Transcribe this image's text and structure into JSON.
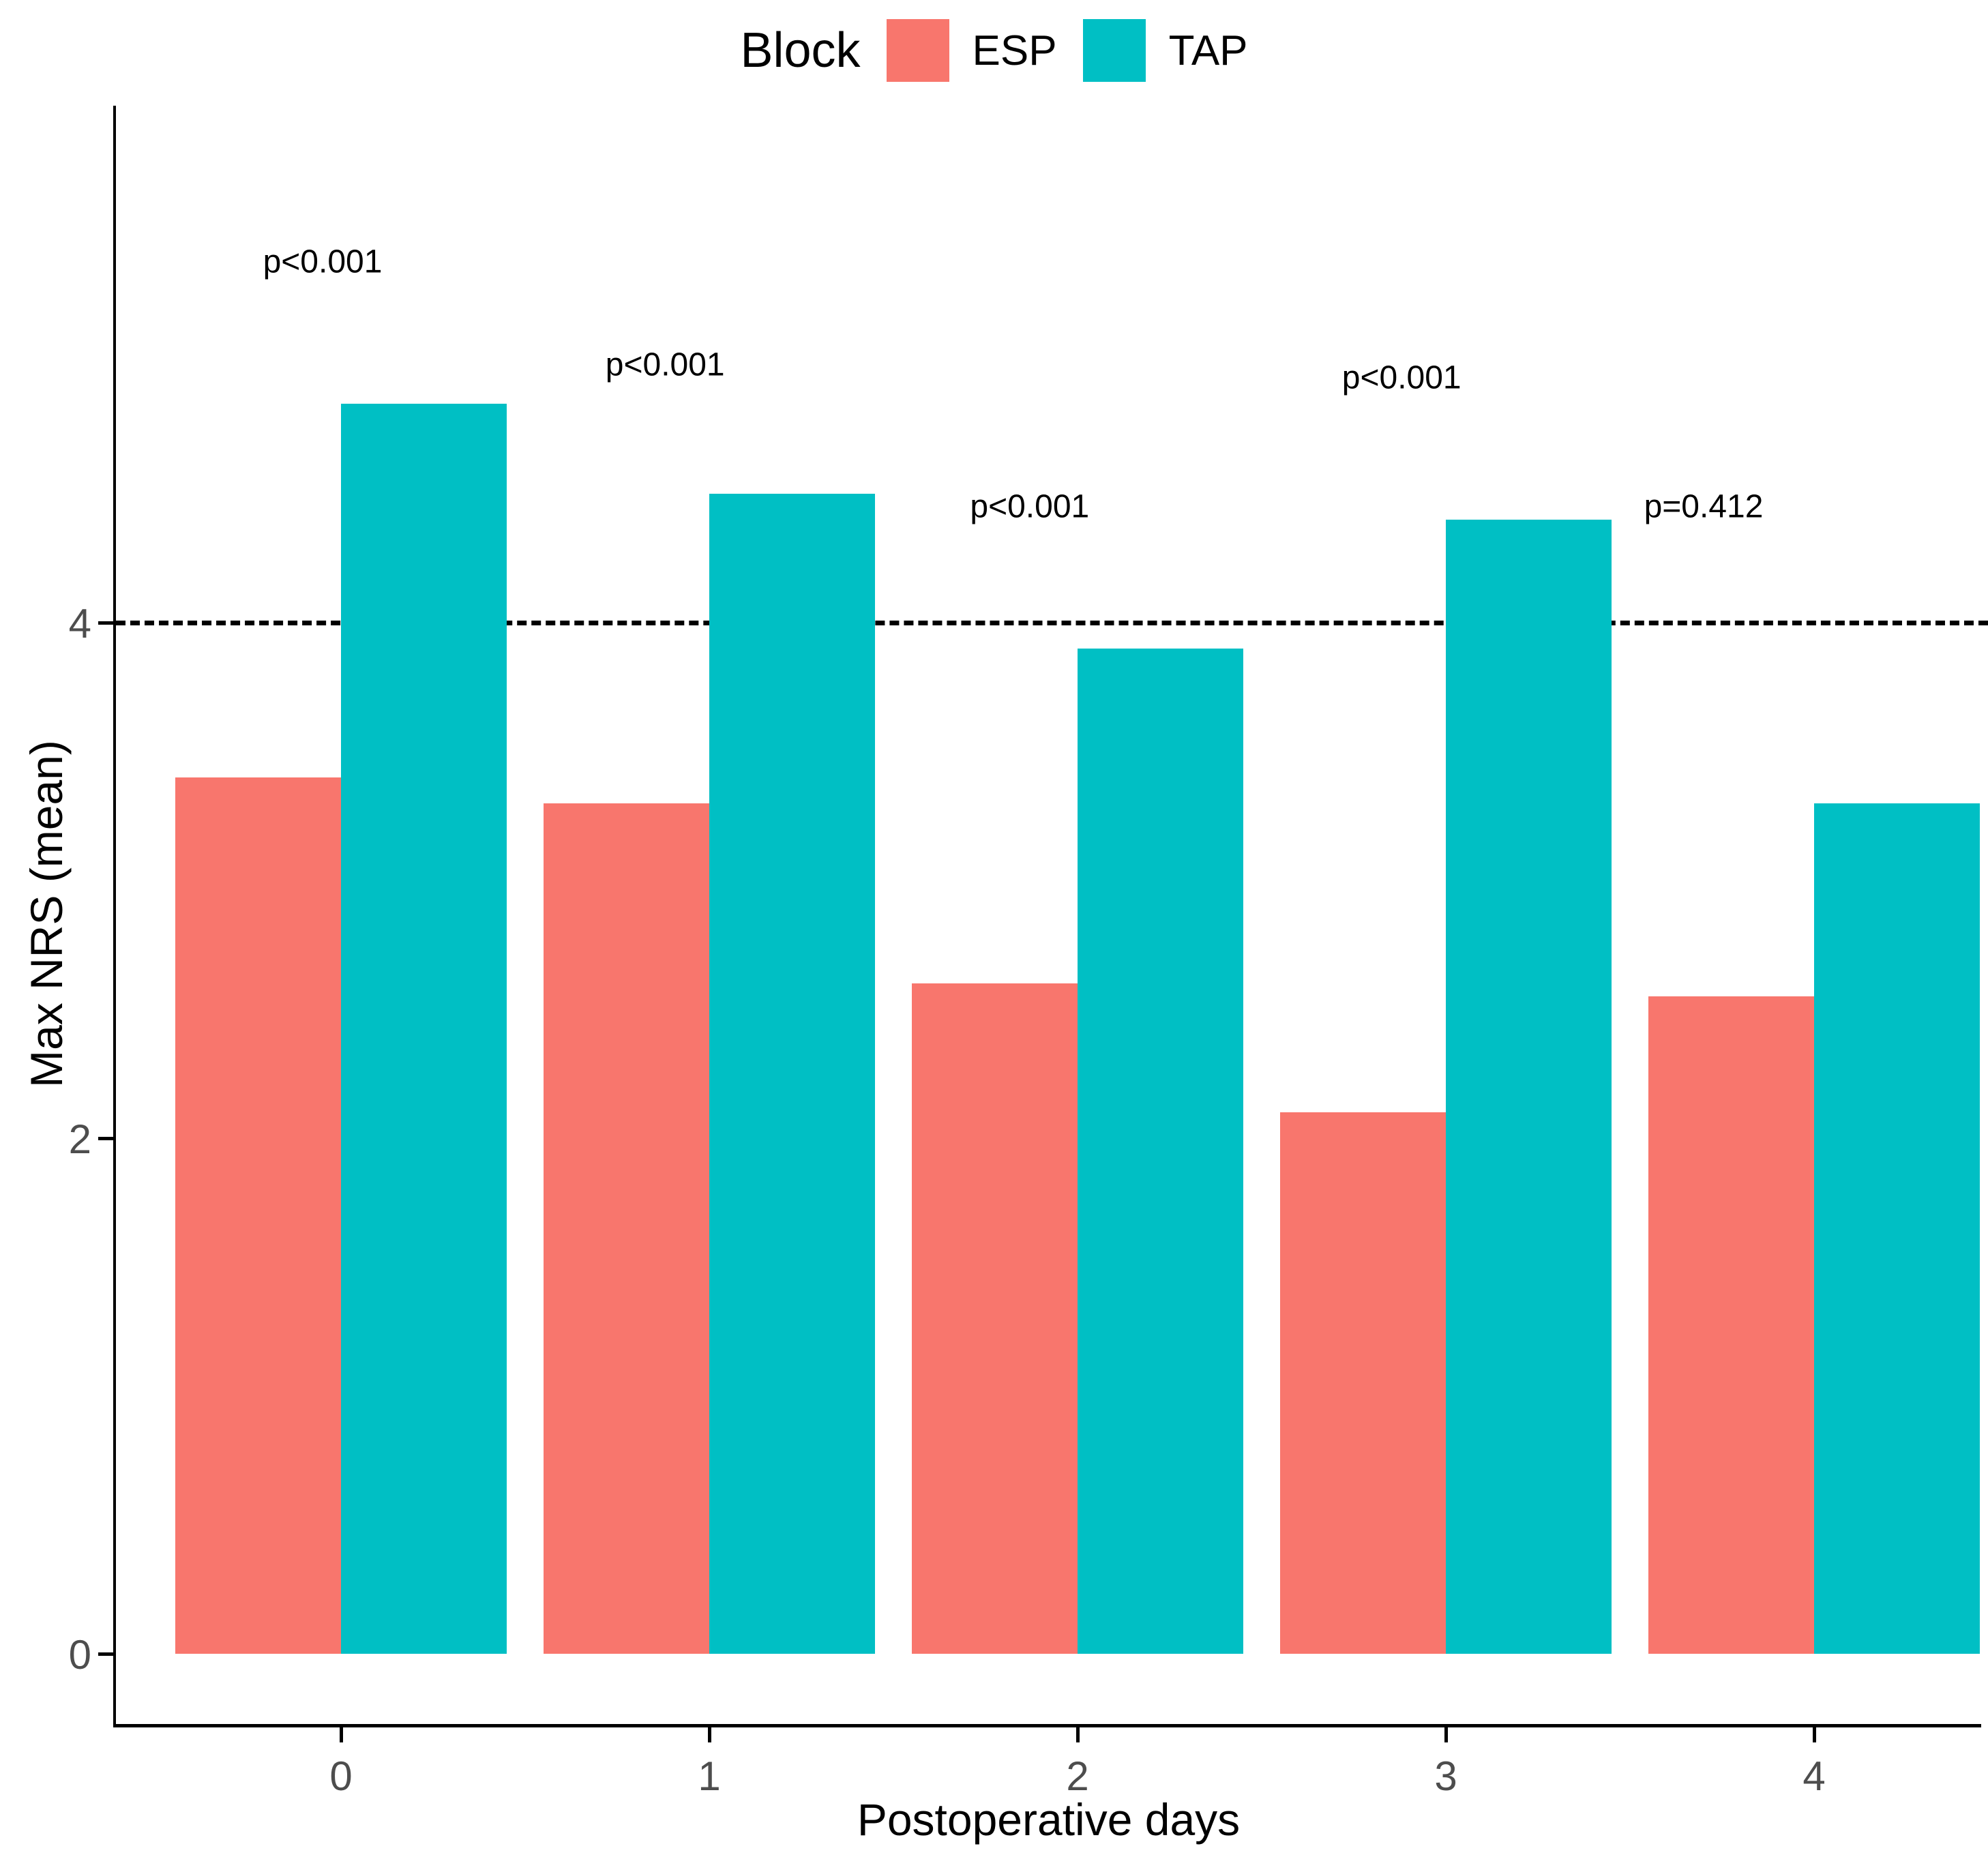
{
  "chart_data": {
    "type": "bar",
    "title": "",
    "xlabel": "Postoperative days",
    "ylabel": "Max NRS (mean)",
    "legend_title": "Block",
    "legend_position": "top",
    "grid": false,
    "categories": [
      "0",
      "1",
      "2",
      "3",
      "4"
    ],
    "series": [
      {
        "name": "ESP",
        "color": "#F8766D",
        "values": [
          3.4,
          3.3,
          2.6,
          2.1,
          2.55
        ]
      },
      {
        "name": "TAP",
        "color": "#00BFC4",
        "values": [
          4.85,
          4.5,
          3.9,
          4.4,
          3.3
        ]
      }
    ],
    "yticks": [
      0,
      2,
      4
    ],
    "ylim": [
      -0.27,
      6.0
    ],
    "reference_line": {
      "y": 4,
      "style": "dashed",
      "color": "#000000"
    },
    "annotations": [
      {
        "text": "p<0.001",
        "cat": 0,
        "dx": -0.05,
        "y": 5.4
      },
      {
        "text": "p<0.001",
        "cat": 1,
        "dx": -0.12,
        "y": 5.0
      },
      {
        "text": "p<0.001",
        "cat": 2,
        "dx": -0.13,
        "y": 4.45
      },
      {
        "text": "p<0.001",
        "cat": 3,
        "dx": -0.12,
        "y": 4.95
      },
      {
        "text": "p=0.412",
        "cat": 4,
        "dx": -0.3,
        "y": 4.45
      }
    ],
    "axis_text_color": "#4d4d4d"
  }
}
